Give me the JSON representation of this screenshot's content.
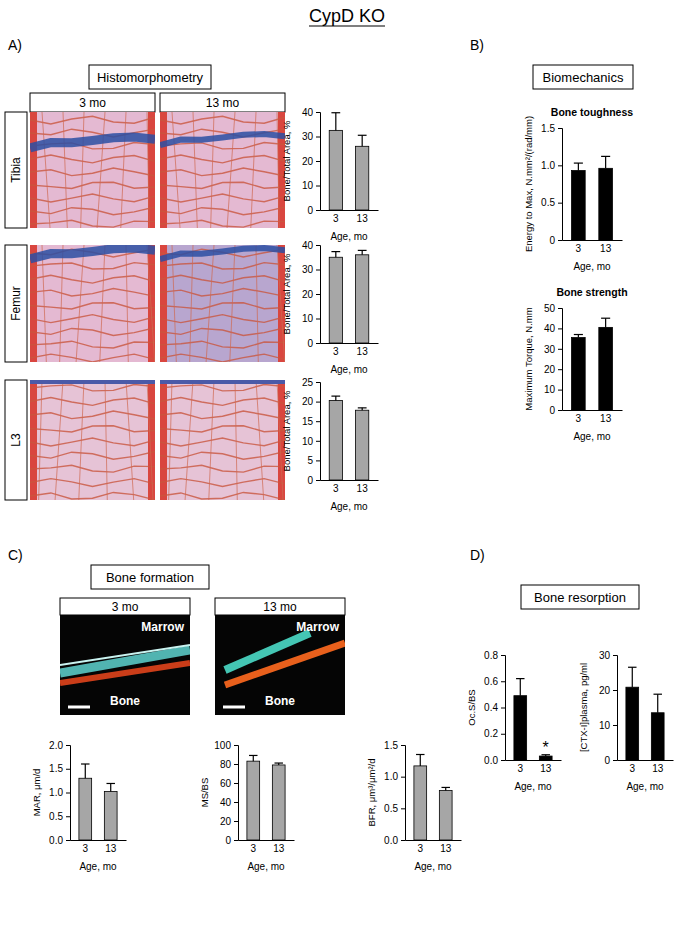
{
  "figure": {
    "title": "CypD KO",
    "panels": [
      {
        "label": "A)",
        "heading": "Histomorphometry"
      },
      {
        "label": "B)",
        "heading": "Biomechanics"
      },
      {
        "label": "C)",
        "heading": "Bone formation"
      },
      {
        "label": "D)",
        "heading": "Bone resorption"
      }
    ],
    "histology": {
      "columns": [
        "3 mo",
        "13 mo"
      ],
      "rows": [
        "Tibia",
        "Femur",
        "L3"
      ]
    },
    "fluorescence": {
      "columns": [
        "3 mo",
        "13 mo"
      ],
      "marrow_label": "Marrow",
      "bone_label": "Bone"
    }
  },
  "chart_data": [
    {
      "type": "bar",
      "y_label": "Bone/Total Area, %",
      "x_label": "Age, mo",
      "categories": [
        "3",
        "13"
      ],
      "values": [
        32.5,
        26
      ],
      "errors": [
        7.2,
        4.5
      ],
      "color": "#a6a6a6",
      "ylim": [
        0,
        40
      ],
      "yticks": [
        0,
        10,
        20,
        30,
        40
      ]
    },
    {
      "type": "bar",
      "y_label": "Bone/Total Area, %",
      "x_label": "Age, mo",
      "categories": [
        "3",
        "13"
      ],
      "values": [
        35,
        36
      ],
      "errors": [
        2.3,
        1.8
      ],
      "color": "#a6a6a6",
      "ylim": [
        0,
        40
      ],
      "yticks": [
        0,
        10,
        20,
        30,
        40
      ]
    },
    {
      "type": "bar",
      "y_label": "Bone/Total Area, %",
      "x_label": "Age, mo",
      "categories": [
        "3",
        "13"
      ],
      "values": [
        20.3,
        17.8
      ],
      "errors": [
        1.1,
        0.6
      ],
      "color": "#a6a6a6",
      "ylim": [
        0,
        25
      ],
      "yticks": [
        0,
        5,
        10,
        15,
        20,
        25
      ]
    },
    {
      "type": "bar",
      "title": "Bone toughness",
      "y_label": "Energy to Max, N.mm²/(rad/mm)",
      "x_label": "Age, mo",
      "categories": [
        "3",
        "13"
      ],
      "values": [
        0.93,
        0.96
      ],
      "errors": [
        0.1,
        0.16
      ],
      "color": "#000000",
      "ylim": [
        0,
        1.5
      ],
      "yticks": [
        0,
        0.5,
        {
          "value": 1,
          "label": "1.0"
        },
        1.5
      ]
    },
    {
      "type": "bar",
      "title": "Bone strength",
      "y_label": "Maximum Torque, N.mm",
      "x_label": "Age, mo",
      "categories": [
        "3",
        "13"
      ],
      "values": [
        35.5,
        40.5
      ],
      "errors": [
        1.5,
        4.5
      ],
      "color": "#000000",
      "ylim": [
        0,
        50
      ],
      "yticks": [
        0,
        10,
        20,
        30,
        40,
        50
      ]
    },
    {
      "type": "bar",
      "y_label": "MAR, μm/d",
      "x_label": "Age, mo",
      "categories": [
        "3",
        "13"
      ],
      "values": [
        1.3,
        1.02
      ],
      "errors": [
        0.3,
        0.17
      ],
      "color": "#a6a6a6",
      "ylim": [
        0,
        2
      ],
      "yticks": [
        {
          "value": 0,
          "label": "0.0"
        },
        0.5,
        {
          "value": 1,
          "label": "1.0"
        },
        1.5,
        {
          "value": 2,
          "label": "2.0"
        }
      ]
    },
    {
      "type": "bar",
      "y_label": "MS/BS",
      "x_label": "Age, mo",
      "categories": [
        "3",
        "13"
      ],
      "values": [
        83,
        79
      ],
      "errors": [
        6,
        2
      ],
      "color": "#a6a6a6",
      "ylim": [
        0,
        100
      ],
      "yticks": [
        0,
        20,
        40,
        60,
        80,
        100
      ]
    },
    {
      "type": "bar",
      "y_label": "BFR, μm³/μm²/d",
      "x_label": "Age, mo",
      "categories": [
        "3",
        "13"
      ],
      "values": [
        1.17,
        0.78
      ],
      "errors": [
        0.18,
        0.05
      ],
      "color": "#a6a6a6",
      "ylim": [
        0,
        1.5
      ],
      "yticks": [
        {
          "value": 0,
          "label": "0.0"
        },
        0.5,
        {
          "value": 1,
          "label": "1.0"
        },
        1.5
      ]
    },
    {
      "type": "bar",
      "y_label": "Oc.S/BS",
      "x_label": "Age, mo",
      "categories": [
        "3",
        "13"
      ],
      "values": [
        0.49,
        0.03
      ],
      "errors": [
        0.13,
        0.01
      ],
      "color": "#000000",
      "ylim": [
        0,
        0.8
      ],
      "yticks": [
        {
          "value": 0,
          "label": "0.0"
        },
        0.2,
        0.4,
        0.6,
        0.8
      ],
      "annotations": [
        {
          "text": "*",
          "category": "13"
        }
      ]
    },
    {
      "type": "bar",
      "y_label": "[CTX-I]plasma, pg/ml",
      "x_label": "Age, mo",
      "categories": [
        "3",
        "13"
      ],
      "values": [
        20.8,
        13.5
      ],
      "errors": [
        5.7,
        5.3
      ],
      "color": "#000000",
      "ylim": [
        0,
        30
      ],
      "yticks": [
        0,
        10,
        20,
        30
      ]
    }
  ]
}
